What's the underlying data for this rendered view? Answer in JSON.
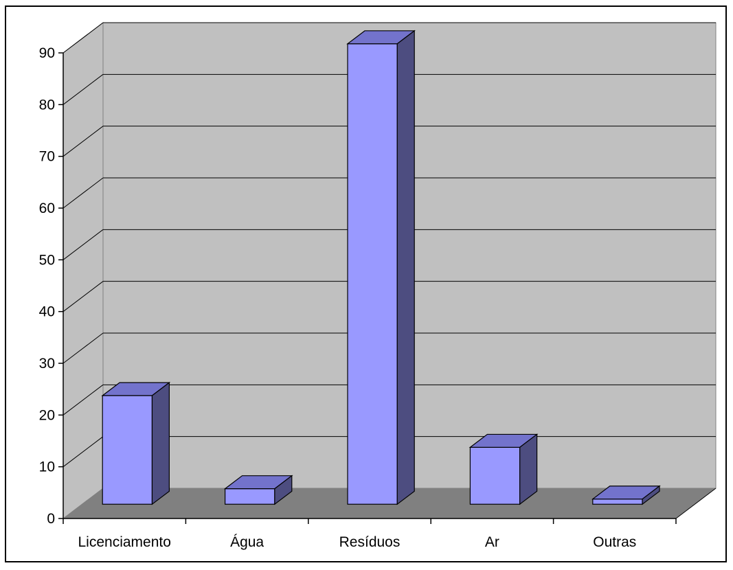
{
  "chart_data": {
    "type": "bar",
    "categories": [
      "Licenciamento",
      "Água",
      "Resíduos",
      "Ar",
      "Outras"
    ],
    "values": [
      21,
      3,
      89,
      11,
      1
    ],
    "ylim": [
      0,
      90
    ],
    "yticks": [
      0,
      10,
      20,
      30,
      40,
      50,
      60,
      70,
      80,
      90
    ],
    "grid": true,
    "legend": "none",
    "colors": {
      "bar_front": "#9999ff",
      "bar_top": "#7373cc",
      "bar_side": "#4d4d80",
      "wall": "#c0c0c0",
      "floor": "#808080",
      "side_wall": "#c0c0c0"
    }
  }
}
